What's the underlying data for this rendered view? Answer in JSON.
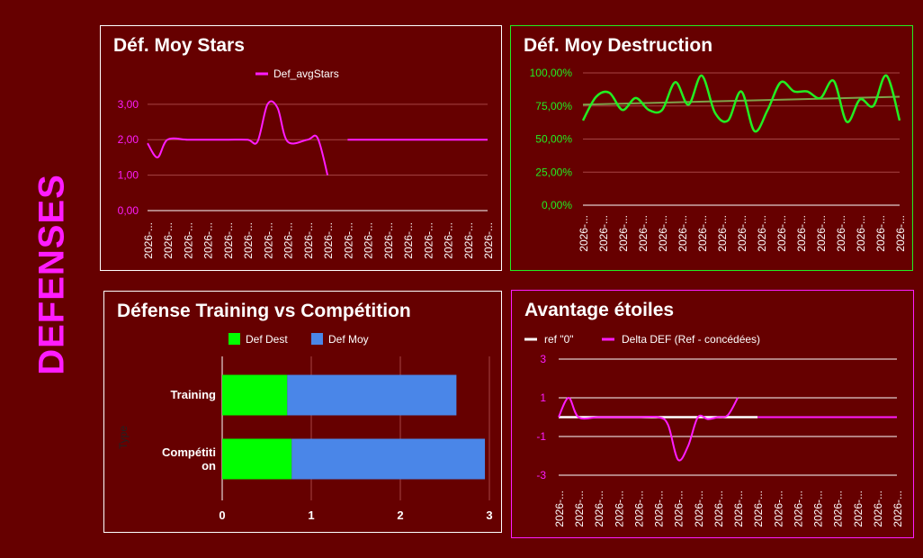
{
  "page": {
    "side_title": "DEFENSES"
  },
  "colors": {
    "background": "#660000",
    "magenta": "#ff1cff",
    "green": "#22ee22",
    "blue": "#4a86e8",
    "bright_green": "#00ff00"
  },
  "chart_data": [
    {
      "type": "line",
      "title": "Déf. Moy Stars",
      "legend": [
        "Def_avgStars"
      ],
      "legend_position": "top",
      "y_ticks": [
        "3,00",
        "2,00",
        "1,00",
        "0,00"
      ],
      "ylim": [
        0,
        3.3
      ],
      "x_tick_label": "2026-...",
      "x_tick_count": 18,
      "series": [
        {
          "name": "Def_avgStars",
          "segments": [
            [
              [
                0,
                1.9
              ],
              [
                0.5,
                1.5
              ],
              [
                1,
                2.0
              ],
              [
                2,
                2.0
              ],
              [
                3,
                2.0
              ],
              [
                4,
                2.0
              ],
              [
                5,
                2.0
              ],
              [
                5.5,
                1.95
              ],
              [
                6,
                3.0
              ],
              [
                6.5,
                2.9
              ],
              [
                7,
                1.95
              ],
              [
                8,
                2.0
              ],
              [
                8.5,
                2.05
              ],
              [
                9,
                1.0
              ]
            ],
            [
              [
                10,
                2.0
              ],
              [
                11,
                2.0
              ],
              [
                12,
                2.0
              ],
              [
                13,
                2.0
              ],
              [
                14,
                2.0
              ],
              [
                15,
                2.0
              ],
              [
                16,
                2.0
              ],
              [
                17,
                2.0
              ]
            ]
          ]
        }
      ]
    },
    {
      "type": "line",
      "title": "Déf. Moy Destruction",
      "y_ticks": [
        "100,00%",
        "75,00%",
        "50,00%",
        "25,00%",
        "0,00%"
      ],
      "ylim": [
        0,
        100
      ],
      "x_tick_label": "2026-...",
      "x_tick_count": 17,
      "series": [
        {
          "name": "destruction",
          "values": [
            64,
            82,
            85,
            72,
            81,
            72,
            72,
            93,
            76,
            98,
            70,
            64,
            86,
            56,
            72,
            93,
            86,
            86,
            81,
            94,
            63,
            80,
            75,
            98,
            64
          ]
        },
        {
          "name": "trend",
          "values": [
            76,
            82
          ]
        }
      ]
    },
    {
      "type": "bar",
      "title": "Défense Training vs Compétition",
      "legend": [
        "Def Dest",
        "Def Moy"
      ],
      "legend_position": "top",
      "ylabel": "Type",
      "categories": [
        "Training",
        "Compétition"
      ],
      "series": [
        {
          "name": "Def Dest",
          "values": [
            0.73,
            0.78
          ]
        },
        {
          "name": "Def Moy",
          "values": [
            1.9,
            2.17
          ]
        }
      ],
      "xlim": [
        0,
        3
      ],
      "x_ticks": [
        "0",
        "1",
        "2",
        "3"
      ]
    },
    {
      "type": "line",
      "title": "Avantage étoiles",
      "legend": [
        "ref \"0\"",
        "Delta DEF (Ref - concédées)"
      ],
      "legend_position": "top",
      "y_ticks": [
        "3",
        "1",
        "-1",
        "-3"
      ],
      "ylim": [
        -3,
        3
      ],
      "x_tick_label": "2026-...",
      "x_tick_count": 18,
      "series": [
        {
          "name": "ref \"0\"",
          "values": [
            0,
            0,
            0,
            0,
            0,
            0,
            0,
            0,
            0,
            0,
            0
          ]
        },
        {
          "name": "Delta DEF (Ref - concédées)",
          "segments": [
            [
              [
                0,
                0
              ],
              [
                0.5,
                1.0
              ],
              [
                1,
                0
              ],
              [
                2,
                0
              ],
              [
                3,
                0
              ],
              [
                4,
                0
              ],
              [
                5,
                0
              ],
              [
                5.5,
                -0.4
              ],
              [
                6,
                -2.2
              ],
              [
                6.5,
                -1.5
              ],
              [
                7,
                0
              ],
              [
                7.5,
                -0.1
              ],
              [
                8,
                0
              ],
              [
                8.5,
                0.1
              ],
              [
                9,
                1.0
              ]
            ],
            [
              [
                10,
                0
              ],
              [
                11,
                0
              ],
              [
                12,
                0
              ],
              [
                13,
                0
              ],
              [
                14,
                0
              ],
              [
                15,
                0
              ],
              [
                16,
                0
              ],
              [
                17,
                0
              ]
            ]
          ]
        }
      ]
    }
  ]
}
